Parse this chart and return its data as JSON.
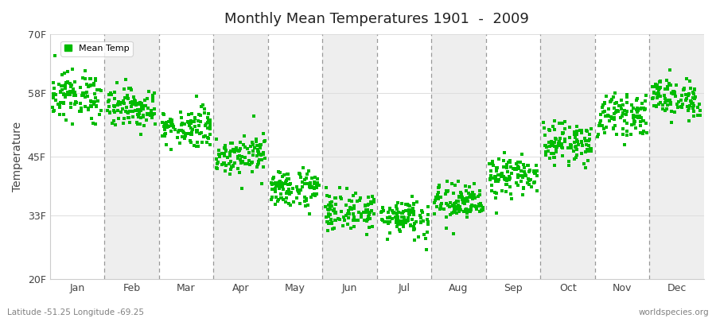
{
  "title": "Monthly Mean Temperatures 1901  -  2009",
  "ylabel": "Temperature",
  "ytick_labels": [
    "20F",
    "33F",
    "45F",
    "58F",
    "70F"
  ],
  "ytick_values": [
    20,
    33,
    45,
    58,
    70
  ],
  "ylim": [
    20,
    70
  ],
  "months": [
    "Jan",
    "Feb",
    "Mar",
    "Apr",
    "May",
    "Jun",
    "Jul",
    "Aug",
    "Sep",
    "Oct",
    "Nov",
    "Dec"
  ],
  "dot_color": "#00bb00",
  "dot_size": 12,
  "background_colors": [
    "#ffffff",
    "#eeeeee"
  ],
  "legend_label": "Mean Temp",
  "subtitle_left": "Latitude -51.25 Longitude -69.25",
  "subtitle_right": "worldspecies.org",
  "n_years": 109,
  "month_mean_F": [
    57.5,
    55.0,
    51.0,
    45.5,
    38.5,
    33.8,
    32.8,
    35.5,
    41.0,
    47.8,
    53.5,
    57.0
  ],
  "month_spread_F": [
    2.5,
    2.0,
    2.0,
    2.0,
    2.0,
    2.0,
    2.0,
    2.0,
    2.0,
    2.0,
    2.0,
    2.0
  ]
}
